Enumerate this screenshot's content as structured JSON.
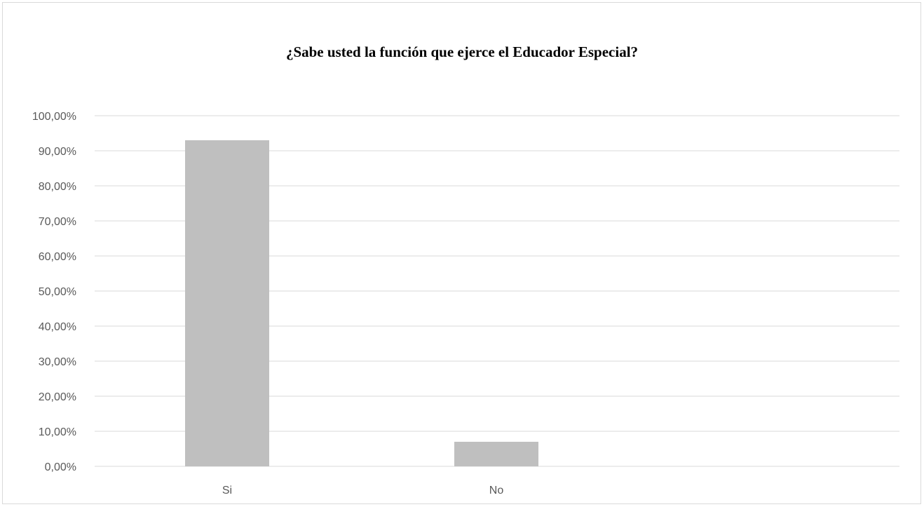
{
  "chart_data": {
    "type": "bar",
    "title": "¿Sabe usted la función que ejerce el Educador Especial?",
    "categories": [
      "Si",
      "No"
    ],
    "values": [
      0.93,
      0.07
    ],
    "ylim": [
      0,
      1
    ],
    "yticks": [
      "0,00%",
      "10,00%",
      "20,00%",
      "30,00%",
      "40,00%",
      "50,00%",
      "60,00%",
      "70,00%",
      "80,00%",
      "90,00%",
      "100,00%"
    ],
    "xlabel": "",
    "ylabel": "",
    "grid": true,
    "legend": "none",
    "bar_color": "#bfbfbf",
    "grid_color": "#d9d9d9"
  }
}
